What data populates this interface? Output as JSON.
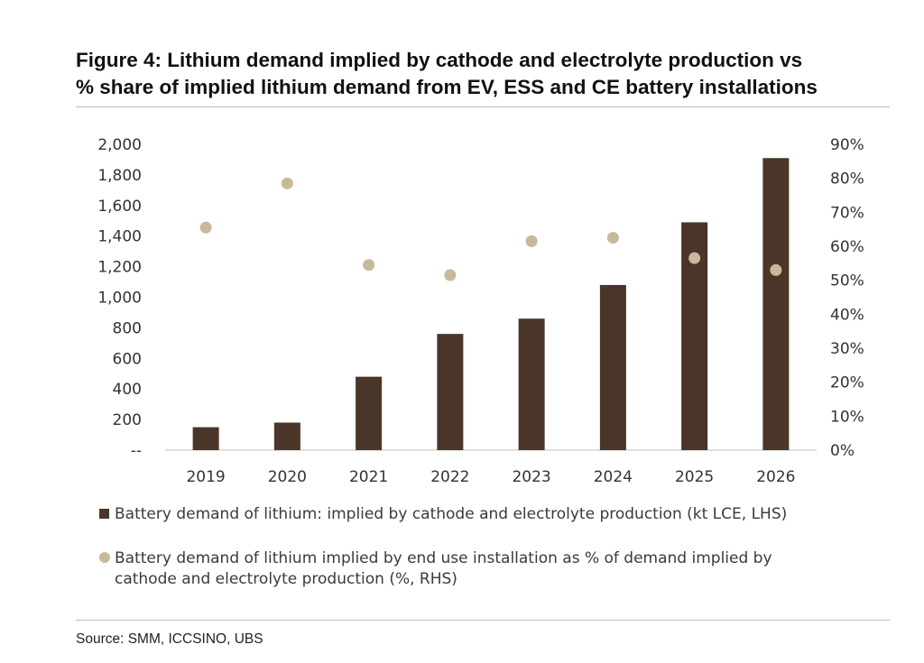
{
  "figure": {
    "title_line1": "Figure 4: Lithium demand implied by cathode and electrolyte production vs",
    "title_line2": "% share of implied lithium demand from EV, ESS and CE battery installations",
    "source": "Source: SMM, ICCSINO, UBS"
  },
  "colors": {
    "bar": "#4a3628",
    "dot": "#c9b89b",
    "baseline": "#bfbfbf"
  },
  "chart_data": {
    "type": "bar",
    "categories": [
      "2019",
      "2020",
      "2021",
      "2022",
      "2023",
      "2024",
      "2025",
      "2026"
    ],
    "series": [
      {
        "name": "Battery demand of lithium: implied by cathode and electrolyte production (kt LCE, LHS)",
        "type": "bar",
        "axis": "left",
        "values": [
          150,
          180,
          480,
          760,
          860,
          1080,
          1490,
          1910
        ]
      },
      {
        "name": "Battery demand of lithium implied by end use installation as % of demand implied by cathode and electrolyte production (%, RHS)",
        "type": "scatter",
        "axis": "right",
        "values": [
          65.5,
          78.5,
          54.5,
          51.5,
          61.5,
          62.5,
          56.5,
          53.0
        ]
      }
    ],
    "legend_lines": [
      [
        "Battery demand of lithium: implied by cathode and electrolyte production (kt LCE, LHS)"
      ],
      [
        "Battery demand of lithium implied by end use installation as % of demand implied by",
        "cathode and electrolyte production (%, RHS)"
      ]
    ],
    "y_left": {
      "ylim": [
        0,
        2000
      ],
      "ticks": [
        0,
        200,
        400,
        600,
        800,
        1000,
        1200,
        1400,
        1600,
        1800,
        2000
      ],
      "tick_labels": [
        "--",
        "200",
        "400",
        "600",
        "800",
        "1,000",
        "1,200",
        "1,400",
        "1,600",
        "1,800",
        "2,000"
      ]
    },
    "y_right": {
      "ylim": [
        0,
        90
      ],
      "ticks": [
        0,
        10,
        20,
        30,
        40,
        50,
        60,
        70,
        80,
        90
      ],
      "tick_labels": [
        "0%",
        "10%",
        "20%",
        "30%",
        "40%",
        "50%",
        "60%",
        "70%",
        "80%",
        "90%"
      ]
    },
    "grid": false,
    "legend_position": "bottom"
  }
}
